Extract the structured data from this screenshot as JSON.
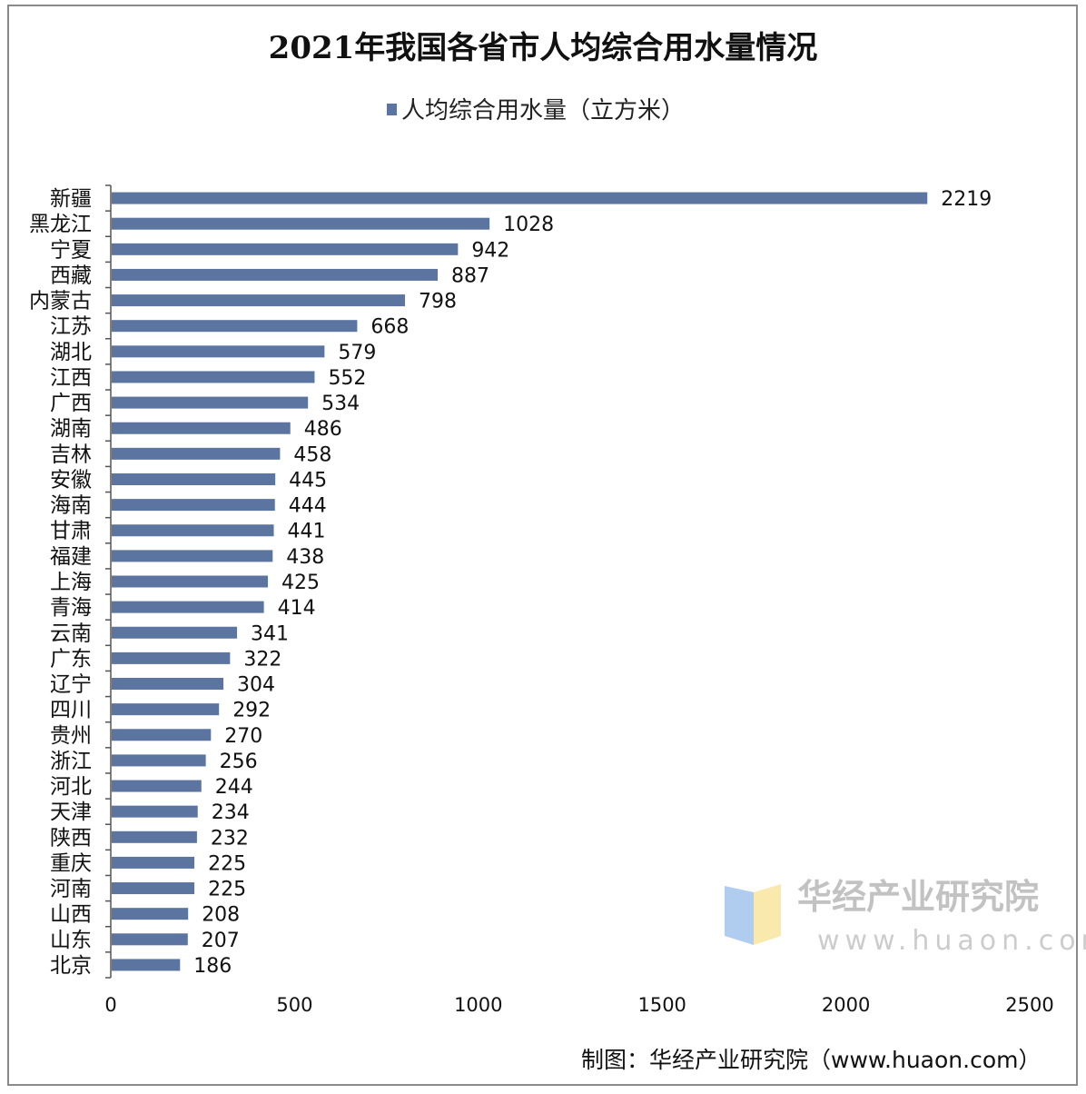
{
  "chart_data": {
    "type": "bar",
    "orientation": "horizontal",
    "title": "2021年我国各省市人均综合用水量情况",
    "categories": [
      "新疆",
      "黑龙江",
      "宁夏",
      "西藏",
      "内蒙古",
      "江苏",
      "湖北",
      "江西",
      "广西",
      "湖南",
      "吉林",
      "安徽",
      "海南",
      "甘肃",
      "福建",
      "上海",
      "青海",
      "云南",
      "广东",
      "辽宁",
      "四川",
      "贵州",
      "浙江",
      "河北",
      "天津",
      "陕西",
      "重庆",
      "河南",
      "山西",
      "山东",
      "北京"
    ],
    "series": [
      {
        "name": "人均综合用水量（立方米）",
        "values": [
          2219,
          1028,
          942,
          887,
          798,
          668,
          579,
          552,
          534,
          486,
          458,
          445,
          444,
          441,
          438,
          425,
          414,
          341,
          322,
          304,
          292,
          270,
          256,
          244,
          234,
          232,
          225,
          225,
          208,
          207,
          186
        ]
      }
    ],
    "xlim": [
      0,
      2500
    ],
    "xticks": [
      "0",
      "500",
      "1000",
      "1500",
      "2000",
      "2500"
    ],
    "grid": false,
    "legend_position": "top",
    "bar_color": "#5b74a0",
    "data_labels": true
  },
  "footer": "制图：华经产业研究院（www.huaon.com）",
  "watermark": {
    "name": "华经产业研究院",
    "url": "www.huaon.com"
  }
}
